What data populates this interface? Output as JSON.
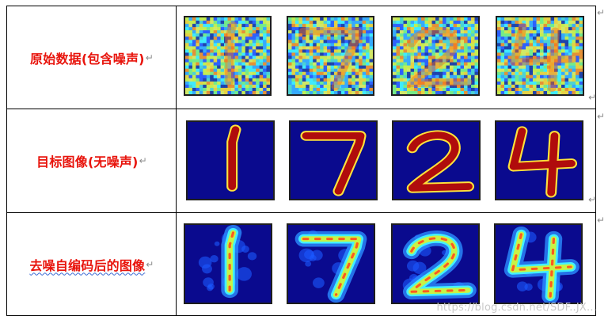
{
  "rows": [
    {
      "label": "原始数据(包含噪声)",
      "type": "noisy",
      "digits": [
        "1",
        "7",
        "2",
        "4"
      ]
    },
    {
      "label": "目标图像(无噪声)",
      "type": "clean",
      "digits": [
        "1",
        "7",
        "2",
        "4"
      ]
    },
    {
      "label": "去噪自编码后的图像",
      "type": "denoised",
      "digits": [
        "1",
        "7",
        "2",
        "4"
      ]
    }
  ],
  "paragraph_mark": "↵",
  "watermark": "https://blog.csdn.net/SDF..JX..."
}
